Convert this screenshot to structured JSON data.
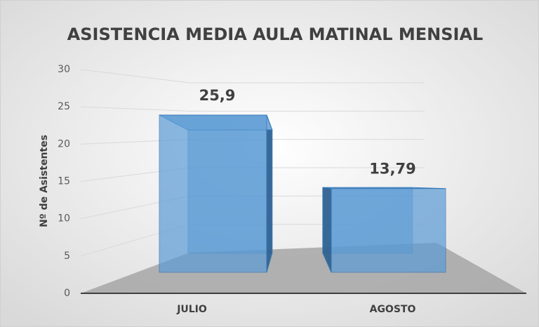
{
  "chart_data": {
    "type": "bar3d",
    "title": "ASISTENCIA MEDIA AULA MATINAL MENSIAL",
    "y_label": "Nº de Asistentes",
    "categories": [
      "JULIO",
      "AGOSTO"
    ],
    "values": [
      25.9,
      13.79
    ],
    "value_labels": [
      "25,9",
      "13,79"
    ],
    "color": "#5b9bd5",
    "ylim": [
      0,
      30
    ],
    "yticks": [
      0,
      5,
      10,
      15,
      20,
      25,
      30
    ],
    "grid": true
  }
}
